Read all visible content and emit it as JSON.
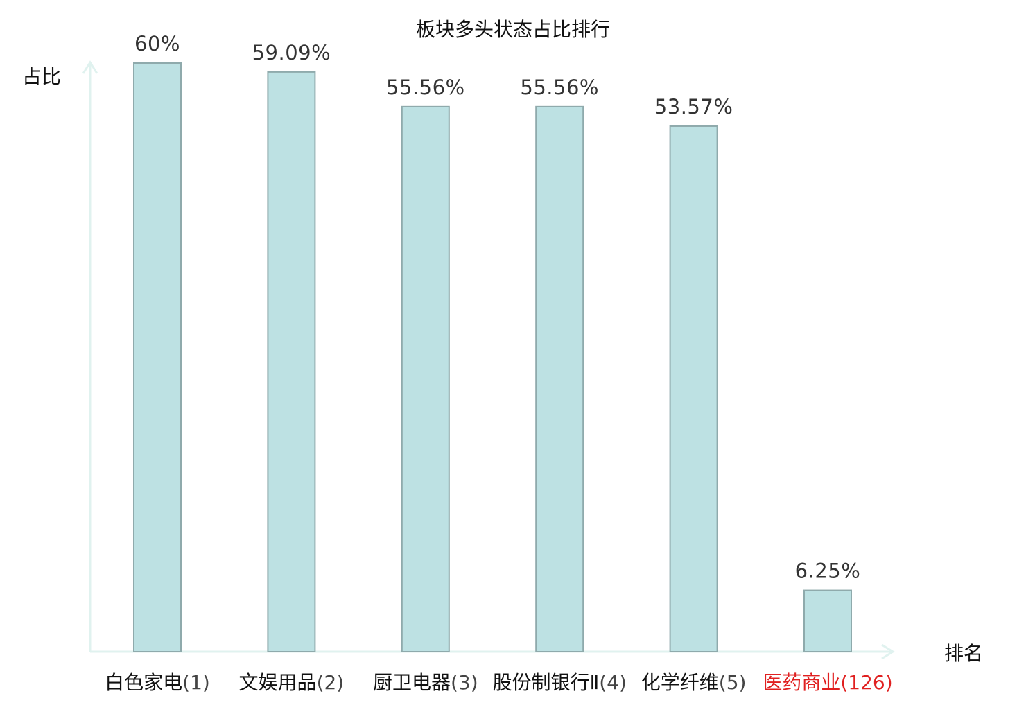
{
  "chart_data": {
    "type": "bar",
    "title": "板块多头状态占比排行",
    "ylabel": "占比",
    "xlabel": "排名",
    "categories": [
      {
        "name": "白色家电",
        "rank": "(1)",
        "highlight": false
      },
      {
        "name": "文娱用品",
        "rank": "(2)",
        "highlight": false
      },
      {
        "name": "厨卫电器",
        "rank": "(3)",
        "highlight": false
      },
      {
        "name": "股份制银行Ⅱ",
        "rank": "(4)",
        "highlight": false
      },
      {
        "name": "化学纤维",
        "rank": "(5)",
        "highlight": false
      },
      {
        "name": "医药商业",
        "rank": "(126)",
        "highlight": true
      }
    ],
    "values": [
      60,
      59.09,
      55.56,
      55.56,
      53.57,
      6.25
    ],
    "value_labels": [
      "60%",
      "59.09%",
      "55.56%",
      "55.56%",
      "53.57%",
      "6.25%"
    ],
    "ylim": [
      0,
      60
    ],
    "grid": false,
    "legend": "none",
    "colors": {
      "bar_fill": "#bde1e3",
      "bar_stroke": "#8faaac",
      "axis": "#e0f2ef",
      "highlight_text": "#e02020",
      "normal_text": "#111111"
    }
  }
}
